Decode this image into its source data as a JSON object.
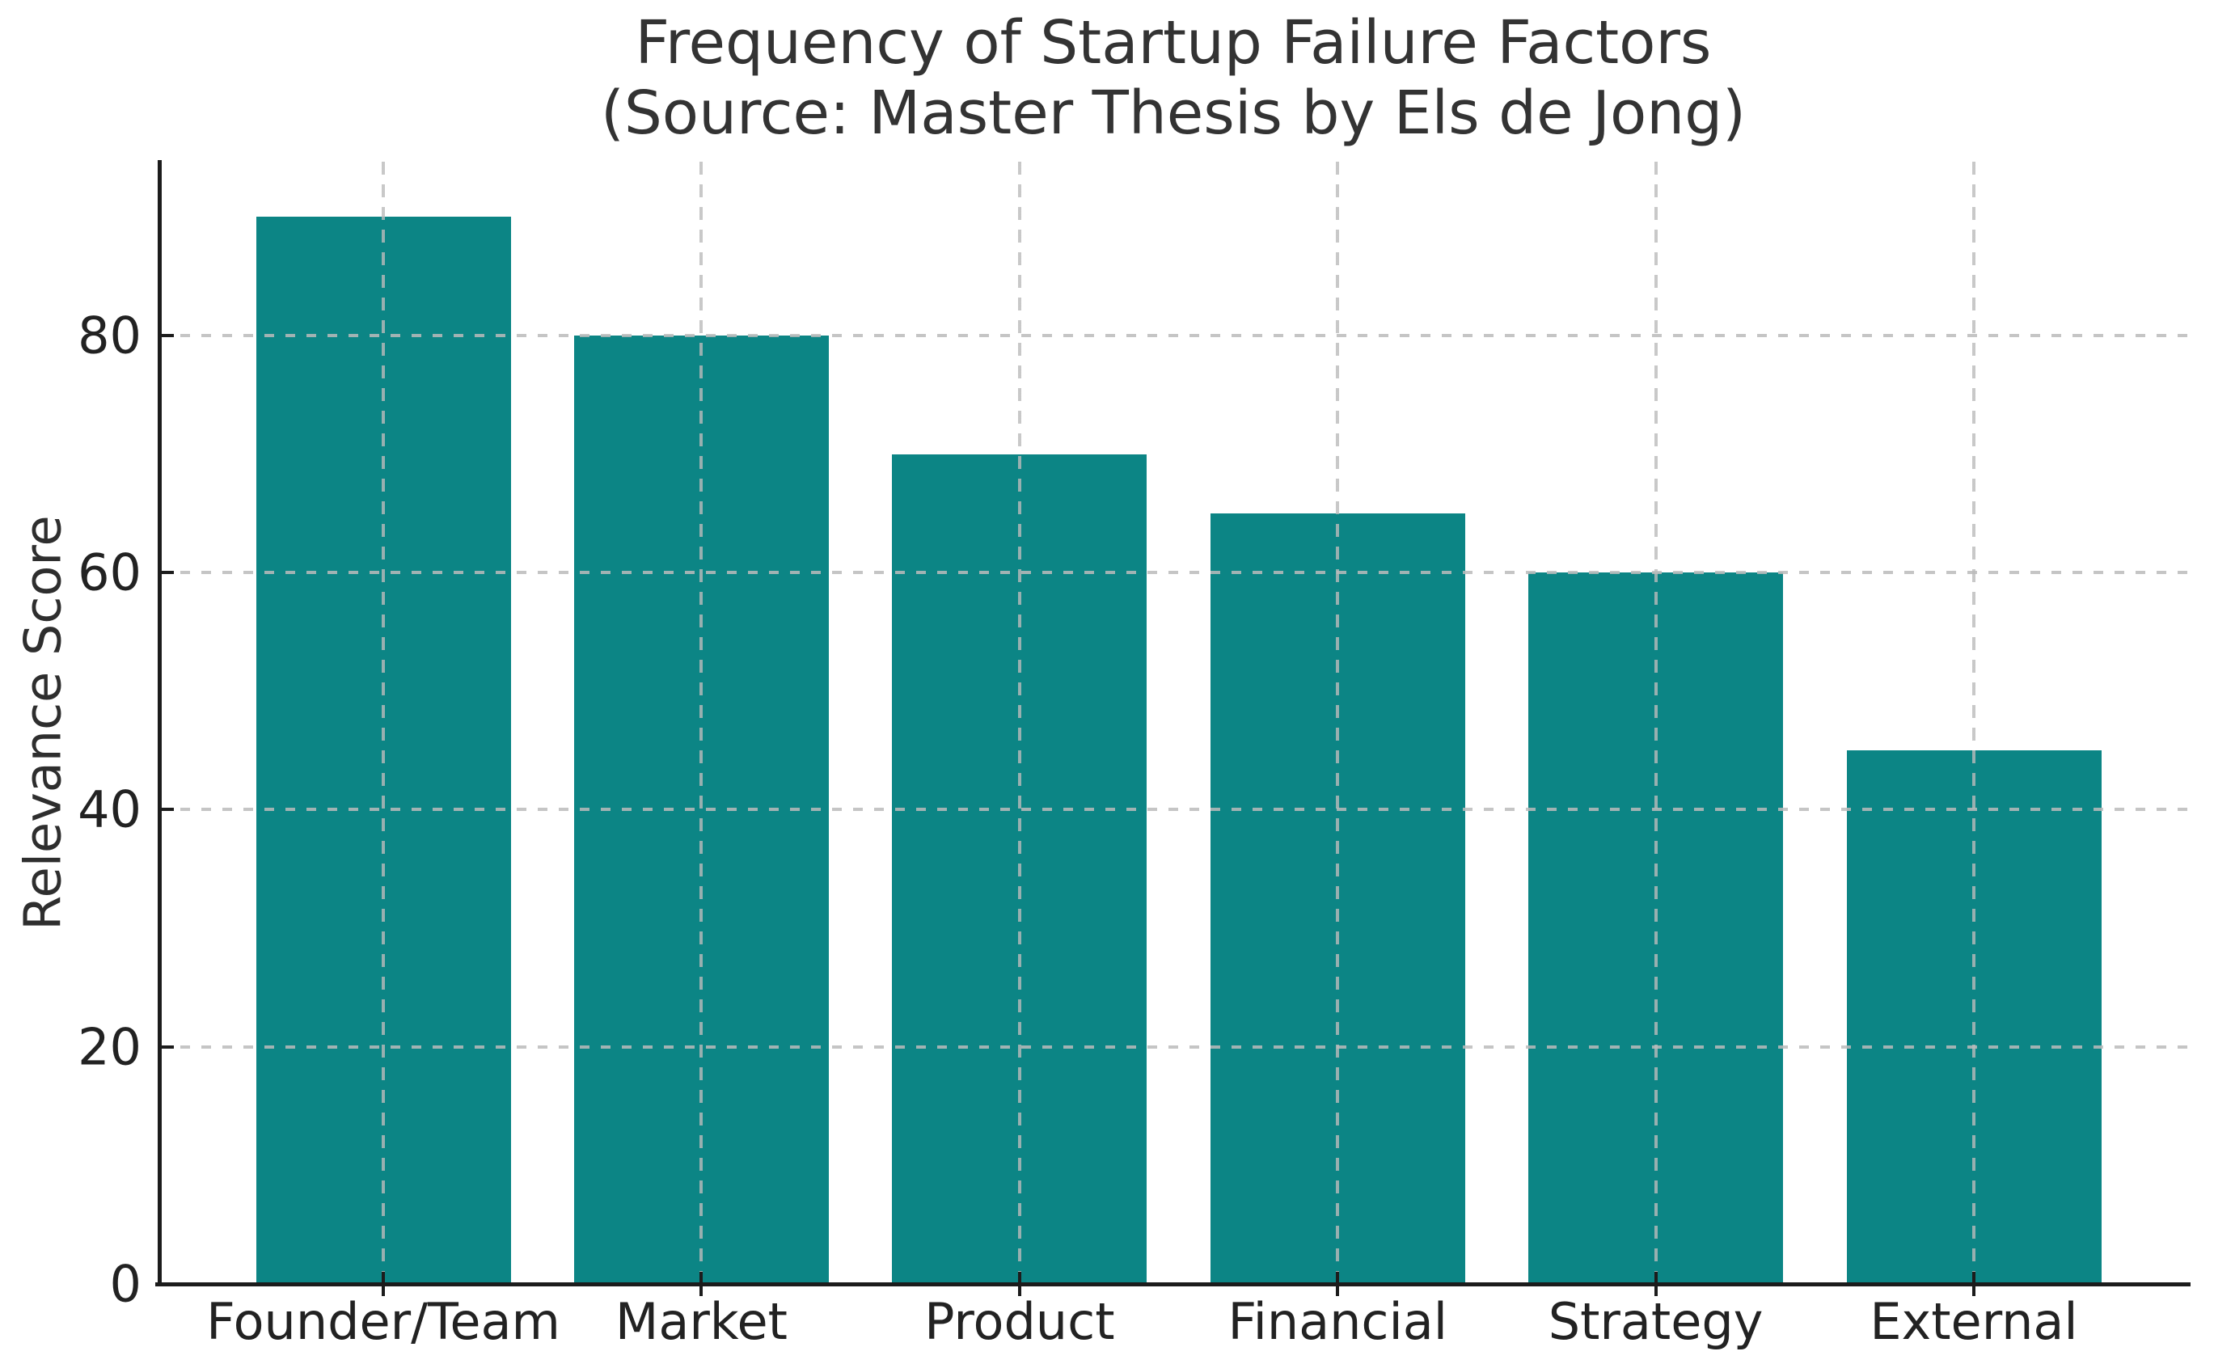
{
  "chart_data": {
    "type": "bar",
    "title": "Frequency of Startup Failure Factors\n(Source: Master Thesis by Els de Jong)",
    "xlabel": "",
    "ylabel": "Relevance Score",
    "categories": [
      "Founder/Team",
      "Market",
      "Product",
      "Financial",
      "Strategy",
      "External"
    ],
    "values": [
      90,
      80,
      70,
      65,
      60,
      45
    ],
    "yticks": [
      0,
      20,
      40,
      60,
      80
    ],
    "ylim": [
      0,
      94.66
    ],
    "grid": "dashed, light gray, horizontal at y-ticks and vertical at category centers, drawn over bars",
    "legend": "none",
    "bar_color": "#0c8585",
    "grid_color": "#bbbbbb",
    "axis_color": "#1c1c1c",
    "text_color": "#2e2e2e"
  }
}
